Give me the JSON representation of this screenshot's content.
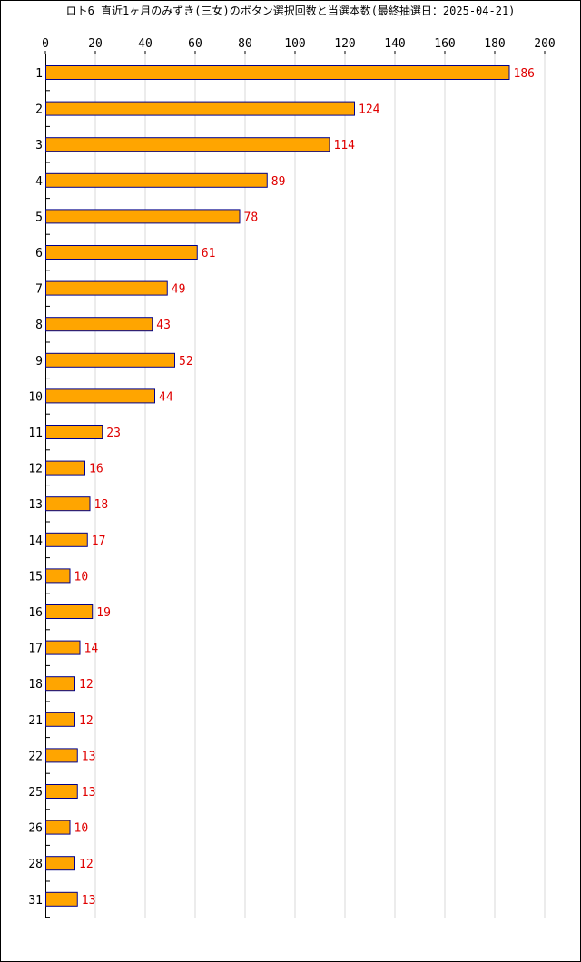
{
  "chart_data": {
    "type": "bar",
    "orientation": "horizontal",
    "title": "ロト6 直近1ヶ月のみずき(三女)のボタン選択回数と当選本数(最終抽選日：2025-04-21)",
    "categories": [
      "1",
      "2",
      "3",
      "4",
      "5",
      "6",
      "7",
      "8",
      "9",
      "10",
      "11",
      "12",
      "13",
      "14",
      "15",
      "16",
      "17",
      "18",
      "21",
      "22",
      "25",
      "26",
      "28",
      "31"
    ],
    "values": [
      186,
      124,
      114,
      89,
      78,
      61,
      49,
      43,
      52,
      44,
      23,
      16,
      18,
      17,
      10,
      19,
      14,
      12,
      12,
      13,
      13,
      10,
      12,
      13
    ],
    "xlim": [
      0,
      200
    ],
    "x_ticks": [
      "0",
      "20",
      "40",
      "60",
      "80",
      "100",
      "120",
      "140",
      "160",
      "180",
      "200"
    ],
    "x_axis_position": "top",
    "grid": true,
    "legend": "none",
    "colors": {
      "bar_fill": "#ffa500",
      "bar_stroke": "#00008b",
      "value_label": "#e00000",
      "grid": "#d8d8d8",
      "axis": "#000000"
    }
  }
}
